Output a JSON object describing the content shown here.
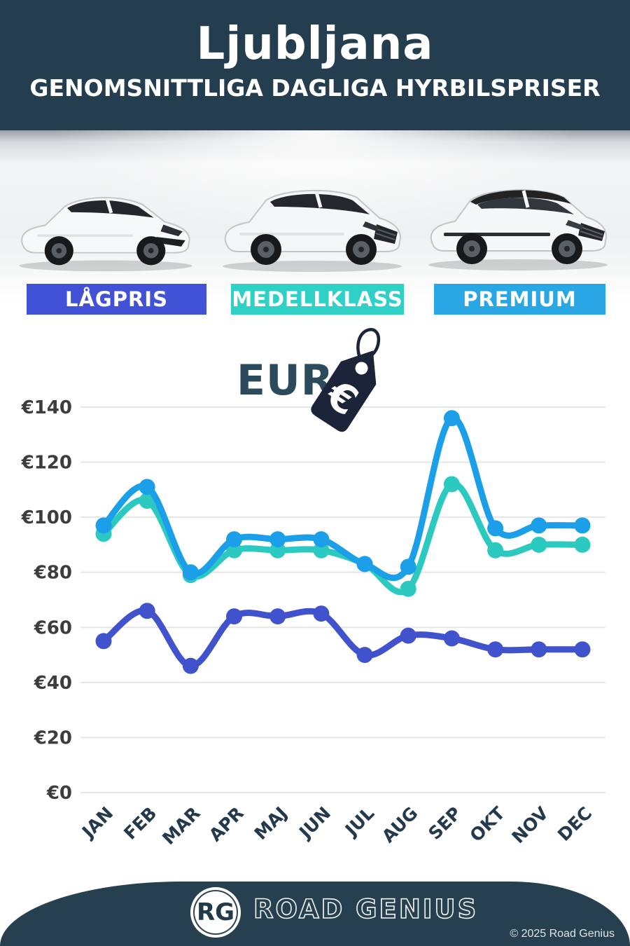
{
  "header": {
    "title": "Ljubljana",
    "subtitle": "GENOMSNITTLIGA DAGLIGA HYRBILSPRISER"
  },
  "tiers": [
    {
      "label": "LÅGPRIS",
      "color": "#4252d6"
    },
    {
      "label": "MEDELLKLASS",
      "color": "#2fd0c5"
    },
    {
      "label": "PREMIUM",
      "color": "#29a7e4"
    }
  ],
  "currency_badge": {
    "text": "EUR",
    "symbol": "€"
  },
  "chart_data": {
    "type": "line",
    "categories": [
      "JAN",
      "FEB",
      "MAR",
      "APR",
      "MAJ",
      "JUN",
      "JUL",
      "AUG",
      "SEP",
      "OKT",
      "NOV",
      "DEC"
    ],
    "series": [
      {
        "name": "LÅGPRIS",
        "color": "#4152cd",
        "values": [
          55,
          66,
          46,
          64,
          64,
          65,
          50,
          57,
          56,
          52,
          52,
          52
        ]
      },
      {
        "name": "MEDELLKLASS",
        "color": "#2cc9c0",
        "values": [
          94,
          106,
          79,
          88,
          88,
          88,
          83,
          74,
          112,
          88,
          90,
          90
        ]
      },
      {
        "name": "PREMIUM",
        "color": "#1b9fe8",
        "values": [
          97,
          111,
          80,
          92,
          92,
          92,
          83,
          82,
          136,
          96,
          97,
          97
        ]
      }
    ],
    "currency_prefix": "€",
    "yticks": [
      0,
      20,
      40,
      60,
      80,
      100,
      120,
      140
    ],
    "ylim": [
      0,
      150
    ],
    "grid": true,
    "legend_position": "none",
    "title": "",
    "xlabel": "",
    "ylabel": ""
  },
  "colors": {
    "header_bg": "#243d4f",
    "footer_bg": "#27404f",
    "eur_text": "#2b4a5c",
    "tag": "#1b2438",
    "grid_line": "#e5e6e7",
    "axis_tick_text": "#3d3d3d",
    "month_text": "#24394b"
  },
  "footer": {
    "logo_initials": "RG",
    "brand": "ROAD GENIUS",
    "copyright": "© 2025 Road Genius"
  }
}
